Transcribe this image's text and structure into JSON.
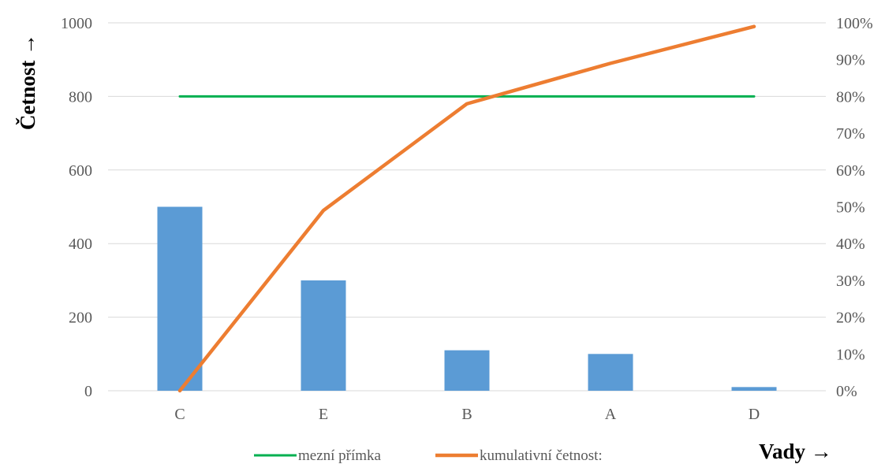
{
  "chart_data": {
    "type": "bar",
    "categories": [
      "C",
      "E",
      "B",
      "A",
      "D"
    ],
    "series": [
      {
        "name": "",
        "type": "bar",
        "axis": "left",
        "color": "#5b9bd5",
        "values": [
          500,
          300,
          110,
          100,
          10
        ]
      },
      {
        "name": "mezní přímka",
        "type": "line",
        "axis": "right",
        "color": "#00b050",
        "values": [
          0.8,
          0.8,
          0.8,
          0.8,
          0.8
        ]
      },
      {
        "name": "kumulativní četnost:",
        "type": "line",
        "axis": "right",
        "color": "#ed7d31",
        "values": [
          0.0,
          0.49,
          0.78,
          0.89,
          0.99
        ]
      }
    ],
    "ylim": [
      0,
      1000
    ],
    "y_ticks": [
      "0",
      "200",
      "400",
      "600",
      "800",
      "1000"
    ],
    "y2lim": [
      0,
      1
    ],
    "y2_ticks": [
      "0%",
      "10%",
      "20%",
      "30%",
      "40%",
      "50%",
      "60%",
      "70%",
      "80%",
      "90%",
      "100%"
    ],
    "ylabel": "Četnost →",
    "xlabel": "Vady →",
    "grid": true,
    "legend_position": "bottom"
  }
}
